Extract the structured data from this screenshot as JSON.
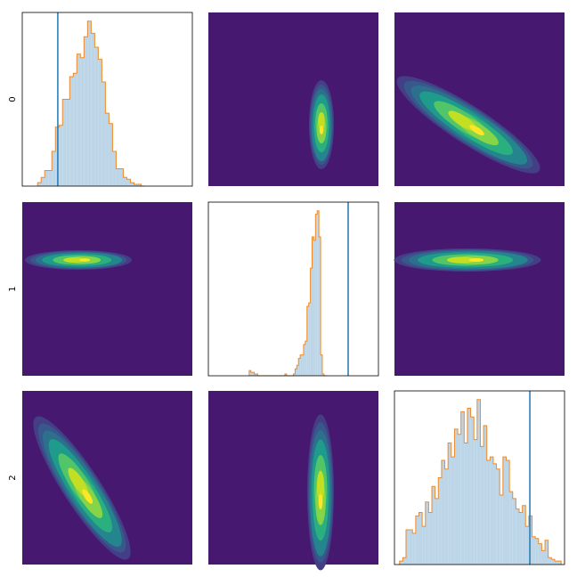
{
  "chart_data": [
    {
      "type": "histogram",
      "label": "0",
      "xlim": [
        0,
        1
      ],
      "ylim": [
        0,
        100
      ],
      "reference": 0.209,
      "bins": [
        0.09,
        0.111,
        0.132,
        0.153,
        0.174,
        0.195,
        0.216,
        0.237,
        0.258,
        0.279,
        0.3,
        0.321,
        0.342,
        0.363,
        0.384,
        0.405,
        0.426,
        0.447,
        0.468,
        0.489,
        0.51,
        0.531,
        0.552,
        0.573,
        0.594,
        0.615,
        0.636,
        0.657,
        0.678,
        0.699,
        0.72
      ],
      "counts": [
        2,
        5,
        9,
        9,
        20,
        34,
        35,
        50,
        50,
        63,
        65,
        76,
        74,
        86,
        95,
        88,
        80,
        73,
        60,
        42,
        36,
        20,
        10,
        10,
        5,
        4,
        2,
        1,
        1,
        0
      ]
    },
    {
      "type": "histogram",
      "label": "1",
      "xlim": [
        0,
        1
      ],
      "ylim": [
        0,
        100
      ],
      "reference": 0.822,
      "bins": [
        0.24,
        0.25,
        0.26,
        0.27,
        0.28,
        0.29,
        0.3,
        0.31,
        0.32,
        0.33,
        0.34,
        0.35,
        0.36,
        0.37,
        0.38,
        0.39,
        0.4,
        0.41,
        0.42,
        0.43,
        0.44,
        0.45,
        0.46,
        0.47,
        0.48,
        0.49,
        0.5,
        0.51,
        0.52,
        0.53,
        0.54,
        0.55,
        0.56,
        0.57,
        0.58,
        0.59,
        0.6,
        0.61,
        0.62,
        0.63,
        0.64,
        0.65,
        0.66,
        0.67,
        0.68,
        0.69,
        0.7
      ],
      "counts": [
        3,
        2,
        2,
        1,
        1,
        0,
        0,
        0,
        0,
        0,
        0,
        0,
        0,
        0,
        0,
        0,
        0,
        0,
        0,
        0,
        0,
        1,
        0,
        0,
        0,
        0,
        1,
        4,
        6,
        10,
        12,
        12,
        18,
        20,
        40,
        42,
        62,
        80,
        78,
        93,
        95,
        80,
        12,
        1,
        0,
        0
      ]
    },
    {
      "type": "histogram",
      "label": "2",
      "xlim": [
        0,
        1
      ],
      "ylim": [
        0,
        100
      ],
      "reference": 0.796,
      "bins": [
        0.03,
        0.049,
        0.068,
        0.087,
        0.106,
        0.125,
        0.144,
        0.163,
        0.182,
        0.201,
        0.22,
        0.239,
        0.258,
        0.277,
        0.296,
        0.315,
        0.334,
        0.353,
        0.372,
        0.391,
        0.41,
        0.429,
        0.448,
        0.467,
        0.486,
        0.505,
        0.524,
        0.543,
        0.562,
        0.581,
        0.6,
        0.619,
        0.638,
        0.657,
        0.676,
        0.695,
        0.714,
        0.733,
        0.752,
        0.771,
        0.79,
        0.809,
        0.828,
        0.847,
        0.866,
        0.885,
        0.904,
        0.923,
        0.942,
        0.961,
        0.98
      ],
      "counts": [
        2,
        4,
        20,
        20,
        18,
        28,
        30,
        22,
        36,
        30,
        45,
        38,
        50,
        60,
        55,
        70,
        62,
        78,
        75,
        88,
        70,
        90,
        85,
        72,
        95,
        68,
        80,
        60,
        62,
        58,
        55,
        40,
        62,
        60,
        42,
        38,
        32,
        30,
        34,
        22,
        28,
        16,
        15,
        12,
        8,
        14,
        4,
        3,
        2,
        2
      ]
    }
  ]
}
